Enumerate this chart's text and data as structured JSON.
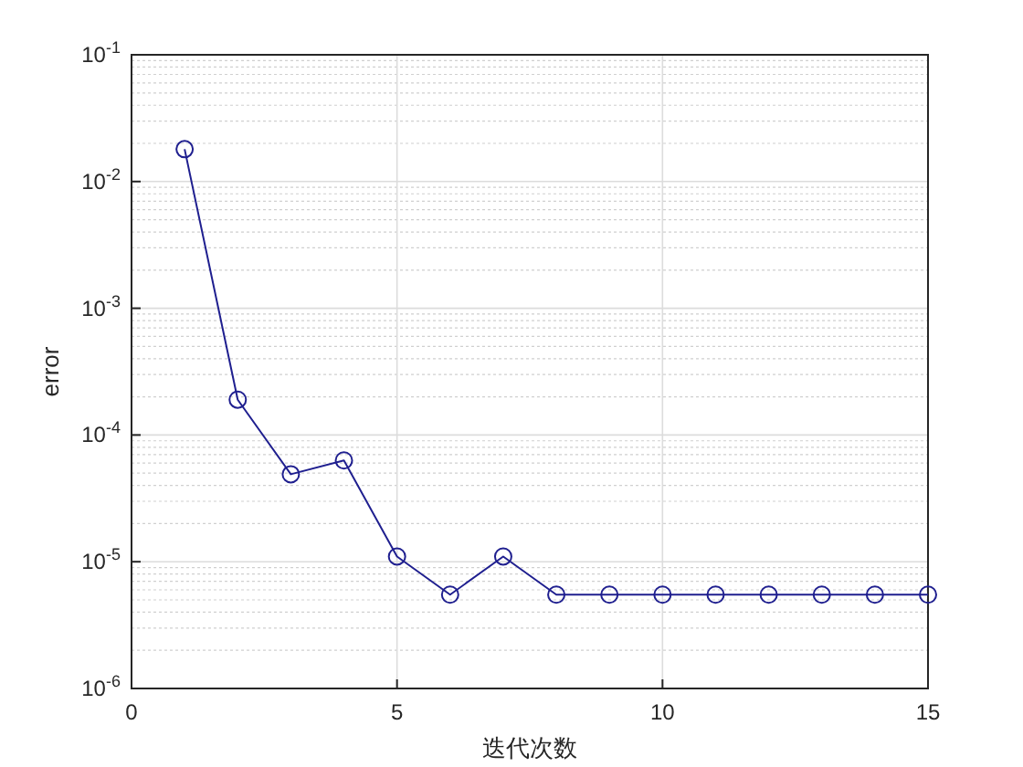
{
  "chart_data": {
    "type": "line",
    "xlabel": "迭代次数",
    "ylabel": "error",
    "x": [
      1,
      2,
      3,
      4,
      5,
      6,
      7,
      8,
      9,
      10,
      11,
      12,
      13,
      14,
      15
    ],
    "series": [
      {
        "color": "#1f1f8f",
        "values": [
          0.018,
          0.00019,
          4.9e-05,
          6.3e-05,
          1.1e-05,
          5.5e-06,
          1.1e-05,
          5.5e-06,
          5.5e-06,
          5.5e-06,
          5.5e-06,
          5.5e-06,
          5.5e-06,
          5.5e-06,
          5.5e-06
        ]
      }
    ],
    "xlim": [
      0,
      15
    ],
    "xticks": [
      0,
      5,
      10,
      15
    ],
    "ylim": [
      1e-06,
      0.1
    ],
    "yticks": [
      {
        "value": 1e-06,
        "label": "10$^{-6}$"
      },
      {
        "value": 1e-05,
        "label": "10$^{-5}$"
      },
      {
        "value": 0.0001,
        "label": "10$^{-4}$"
      },
      {
        "value": 0.001,
        "label": "10$^{-3}$"
      },
      {
        "value": 0.01,
        "label": "10$^{-2}$"
      },
      {
        "value": 0.1,
        "label": "10$^{-1}$"
      }
    ],
    "log": "y",
    "grid": true,
    "marker": "circle",
    "line_style": "solid"
  }
}
